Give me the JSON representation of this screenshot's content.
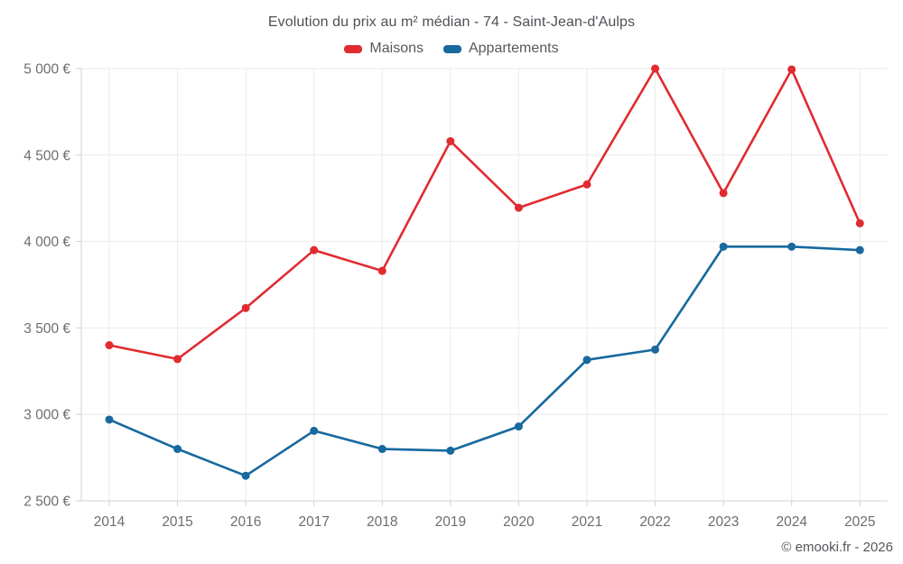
{
  "title": "Evolution du prix au m² médian - 74 - Saint-Jean-d'Aulps",
  "footer": "© emooki.fr - 2026",
  "colors": {
    "maisons": "#e02b31",
    "appartements": "#17699e",
    "grid": "#ebebeb",
    "axis": "#d2d2d2",
    "tick_text": "#6a6e72"
  },
  "chart_data": {
    "type": "line",
    "title": "Evolution du prix au m² médian - 74 - Saint-Jean-d'Aulps",
    "xlabel": "",
    "ylabel": "",
    "x_labels": [
      "2014",
      "2015",
      "2016",
      "2017",
      "2018",
      "2019",
      "2020",
      "2021",
      "2022",
      "2023",
      "2024",
      "2025"
    ],
    "series": [
      {
        "name": "Maisons",
        "color": "#e02b31",
        "values": [
          3400,
          3320,
          3615,
          3950,
          3830,
          4580,
          4195,
          4330,
          5000,
          4280,
          4995,
          4105
        ]
      },
      {
        "name": "Appartements",
        "color": "#17699e",
        "values": [
          2970,
          2800,
          2645,
          2905,
          2800,
          2790,
          2930,
          3315,
          3375,
          3970,
          3970,
          3950
        ]
      }
    ],
    "ylim": [
      2500,
      5000
    ],
    "y_ticks": [
      2500,
      3000,
      3500,
      4000,
      4500,
      5000
    ],
    "y_tick_labels": [
      "2 500 €",
      "3 000 €",
      "3 500 €",
      "4 000 €",
      "4 500 €",
      "5 000 €"
    ],
    "currency_suffix": "€",
    "grid": true,
    "legend_position": "top"
  }
}
